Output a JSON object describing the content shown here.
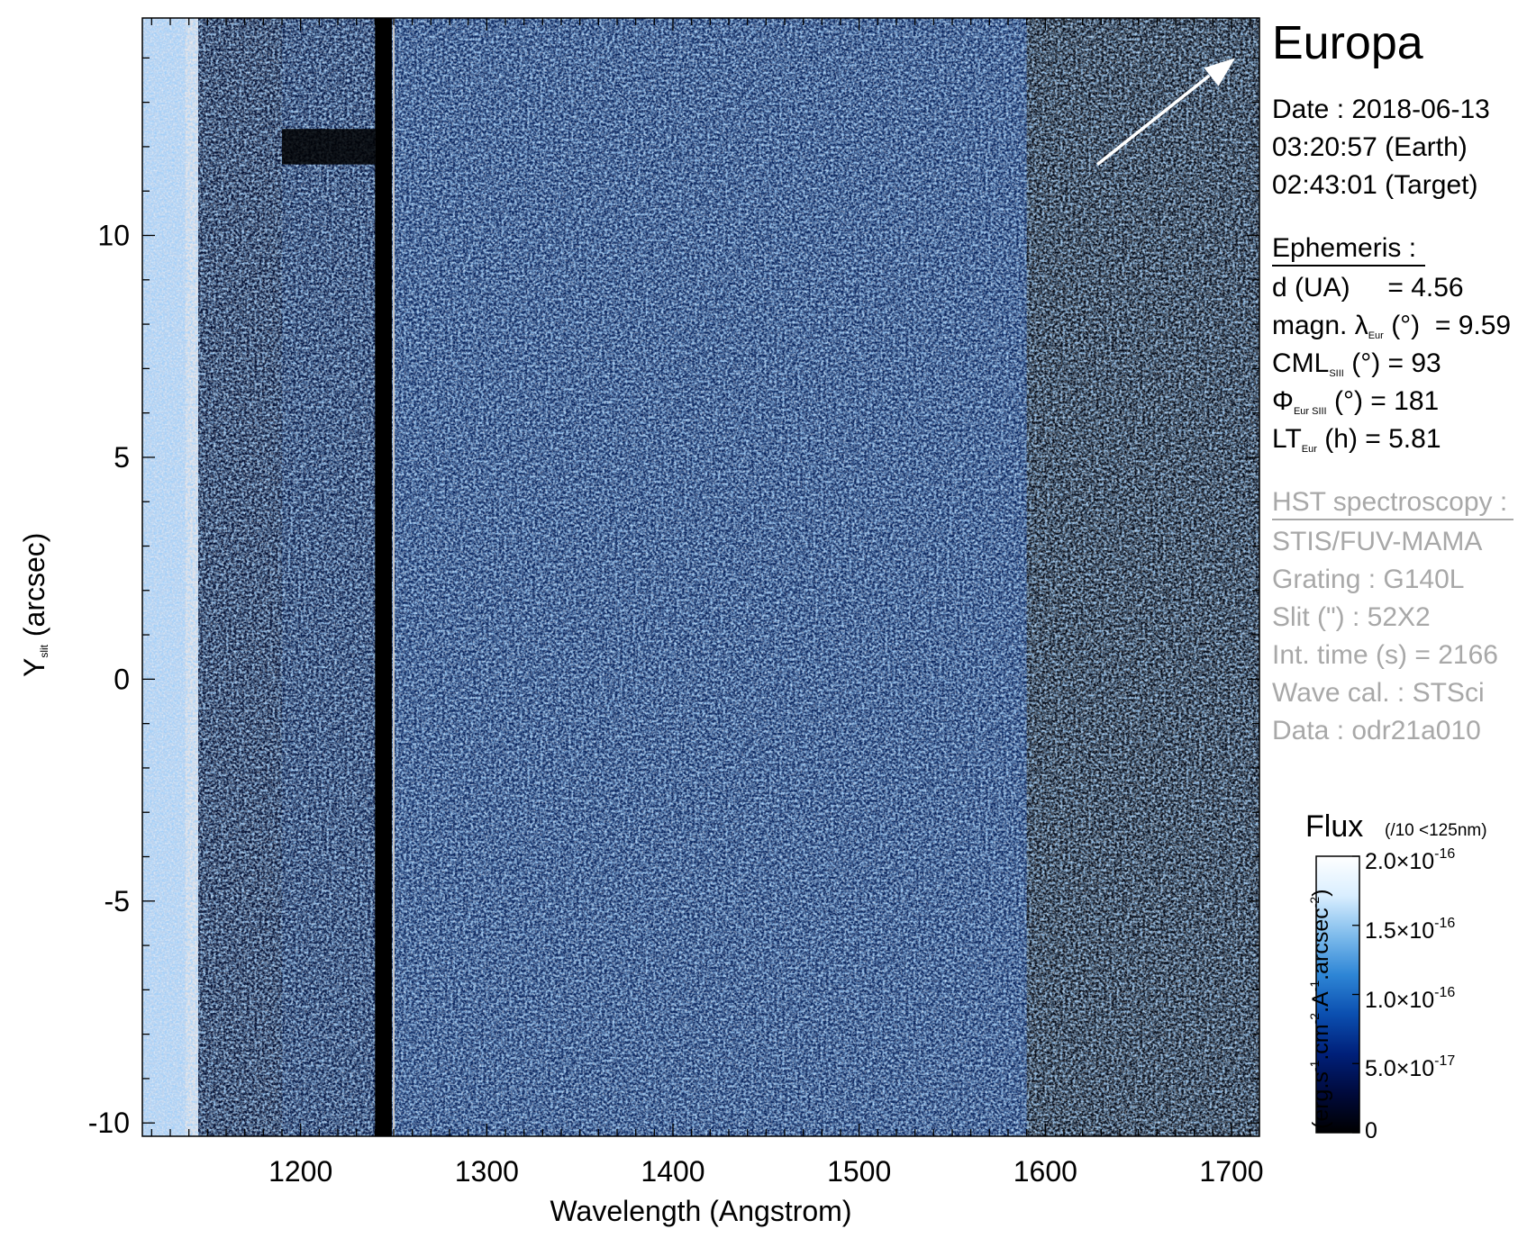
{
  "chart_data": {
    "type": "heatmap",
    "title": "Europa",
    "xlabel": "Wavelength (Angstrom)",
    "ylabel_main": "Y",
    "ylabel_sub": "slit",
    "ylabel_rest": "(arcsec)",
    "xlim": [
      1115,
      1715
    ],
    "ylim": [
      -10.3,
      14.9
    ],
    "x_ticks": [
      1200,
      1300,
      1400,
      1500,
      1600,
      1700
    ],
    "x_tick_labels": [
      "1200",
      "1300",
      "1400",
      "1500",
      "1600",
      "1700"
    ],
    "y_ticks": [
      10,
      5,
      0,
      -5,
      -10
    ],
    "y_tick_labels": [
      "10",
      "5",
      "0",
      "-5",
      "-10"
    ],
    "reference_line_x": 1250,
    "detector_gap_x": [
      1240,
      1249
    ],
    "colorbar": {
      "title": "Flux",
      "note": "(/10 <125nm)",
      "label": {
        "base": "(erg.s",
        "exp1": "-1",
        "mid1": ".cm",
        "exp2": "-2",
        "mid2": ".A",
        "exp3": "-1",
        "mid3": ".arcsec",
        "exp4": "-2",
        "end": ")"
      },
      "range": [
        0,
        2e-16
      ],
      "ticks": [
        {
          "value": 2e-16,
          "mantissa": "2.0×10",
          "exponent": "-16"
        },
        {
          "value": 1.5e-16,
          "mantissa": "1.5×10",
          "exponent": "-16"
        },
        {
          "value": 1e-16,
          "mantissa": "1.0×10",
          "exponent": "-16"
        },
        {
          "value": 5e-17,
          "mantissa": "5.0×10",
          "exponent": "-17"
        },
        {
          "value": 0,
          "mantissa": "0",
          "exponent": ""
        }
      ],
      "colors": [
        "#000000",
        "#000a3c",
        "#00207a",
        "#0b4fb0",
        "#2e86d6",
        "#7fbcec",
        "#d9eeff",
        "#ffffff"
      ]
    }
  },
  "panel": {
    "target": "Europa",
    "date_line": "Date : 2018-06-13",
    "earth_time": "03:20:57 (Earth)",
    "target_time": "02:43:01 (Target)",
    "ephemeris_header": "Ephemeris :",
    "d_label": "d (UA)",
    "d_value": "= 4.56",
    "magn_prefix": "magn. λ",
    "magn_sub": "Eur",
    "magn_unit": "(°)",
    "magn_value": "= 9.59",
    "cml_prefix": "CML",
    "cml_sub": "SIII",
    "cml_unit": "(°) = 93",
    "phi_prefix": "Φ",
    "phi_sub": "Eur SIII",
    "phi_unit": "(°) = 181",
    "lt_prefix": "LT",
    "lt_sub": "Eur",
    "lt_unit": "(h) = 5.81",
    "hst_header": "HST spectroscopy :",
    "instrument": "STIS/FUV-MAMA",
    "grating": "Grating : G140L",
    "slit": "Slit (\") : 52X2",
    "int_time": "Int. time (s) = 2166",
    "wave_cal": "Wave cal. : STSci",
    "data_id": "Data : odr21a010"
  }
}
